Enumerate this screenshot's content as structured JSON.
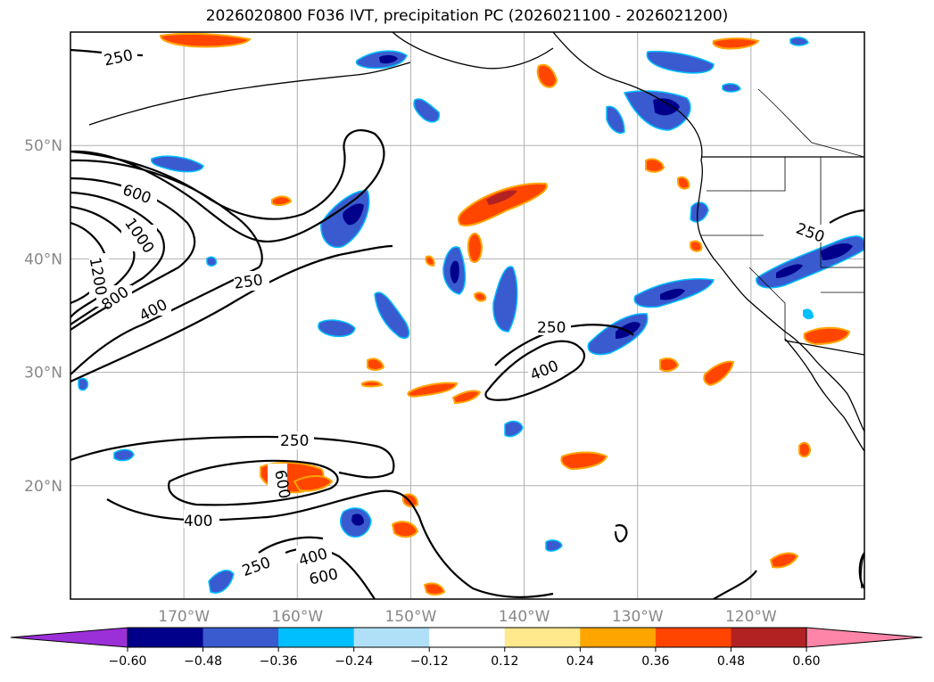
{
  "title": "2026020800 F036 IVT, precipitation PC (2026021100 - 2026021200)",
  "map": {
    "lon_range": [
      -180,
      -110
    ],
    "lat_range": [
      10,
      60
    ],
    "lon_ticks": [
      {
        "value": -170,
        "label": "170°W"
      },
      {
        "value": -160,
        "label": "160°W"
      },
      {
        "value": -150,
        "label": "150°W"
      },
      {
        "value": -140,
        "label": "140°W"
      },
      {
        "value": -130,
        "label": "130°W"
      },
      {
        "value": -120,
        "label": "120°W"
      }
    ],
    "lat_ticks": [
      {
        "value": 20,
        "label": "20°N"
      },
      {
        "value": 30,
        "label": "30°N"
      },
      {
        "value": 40,
        "label": "40°N"
      },
      {
        "value": 50,
        "label": "50°N"
      }
    ],
    "grid": true
  },
  "ivt_contour_labels": [
    "250",
    "400",
    "600",
    "800",
    "1000",
    "1200"
  ],
  "colorbar": {
    "colors": {
      "below_min": "#9b30d9",
      "neg_060": "#00008b",
      "neg_048": "#3a5bcf",
      "neg_036": "#00bfff",
      "neg_024": "#b0e0f8",
      "neutral": "#ffffff",
      "pos_012": "#ffe98c",
      "pos_024": "#ffa500",
      "pos_036": "#ff4500",
      "pos_048": "#b22222",
      "above_max": "#ff85a8"
    },
    "ticks": [
      "−0.60",
      "−0.48",
      "−0.36",
      "−0.24",
      "−0.12",
      "0.12",
      "0.24",
      "0.36",
      "0.48",
      "0.60"
    ]
  }
}
